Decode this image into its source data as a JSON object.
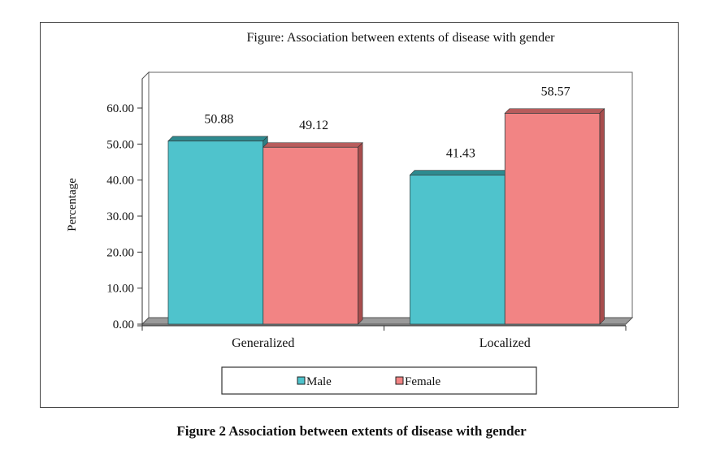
{
  "figure": {
    "caption": "Figure 2 Association between extents of disease with gender"
  },
  "chart_data": {
    "type": "bar",
    "style": "3d-clustered-column",
    "title": "Figure: Association between extents of disease with gender",
    "xlabel": "",
    "ylabel": "Percentage",
    "categories": [
      "Generalized",
      "Localized"
    ],
    "series": [
      {
        "name": "Male",
        "values": [
          50.88,
          41.43
        ],
        "color": "#4fc3cc",
        "top_color": "#2e8a8f",
        "side_color": "#2e7f84"
      },
      {
        "name": "Female",
        "values": [
          49.12,
          58.57
        ],
        "color": "#f28484",
        "top_color": "#b85c5c",
        "side_color": "#a84d4d"
      }
    ],
    "data_labels": [
      [
        "50.88",
        "41.43"
      ],
      [
        "49.12",
        "58.57"
      ]
    ],
    "ylim": [
      0,
      60
    ],
    "yticks": [
      0,
      10,
      20,
      30,
      40,
      50,
      60
    ],
    "ytick_labels": [
      "0.00",
      "10.00",
      "20.00",
      "30.00",
      "40.00",
      "50.00",
      "60.00"
    ],
    "grid": false,
    "legend": {
      "placement": "bottom",
      "entries": [
        "Male",
        "Female"
      ]
    },
    "floor_color": "#9a9a9a"
  }
}
